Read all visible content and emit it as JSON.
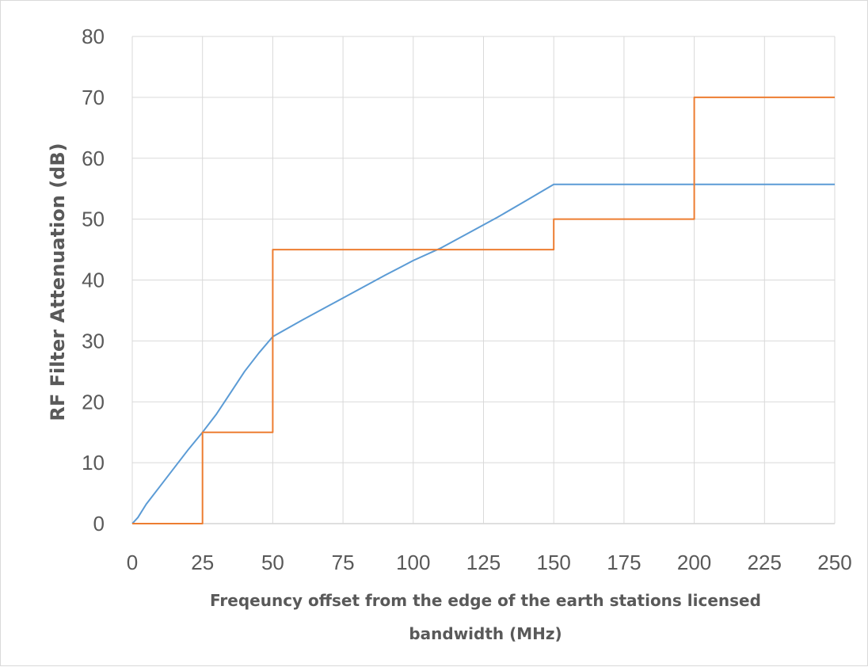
{
  "chart_data": {
    "type": "line",
    "title": "",
    "xlabel_lines": [
      "Freqeuncy offset from the edge of the earth stations licensed",
      "bandwidth (MHz)"
    ],
    "ylabel": "RF Filter Attenuation (dB)",
    "xlim": [
      0,
      250
    ],
    "ylim": [
      0,
      80
    ],
    "xticks": [
      0,
      25,
      50,
      75,
      100,
      125,
      150,
      175,
      200,
      225,
      250
    ],
    "yticks": [
      0,
      10,
      20,
      30,
      40,
      50,
      60,
      70,
      80
    ],
    "grid": true,
    "legend": "none",
    "series": [
      {
        "color": "#5b9bd5",
        "x": [
          0,
          2,
          5,
          10,
          15,
          20,
          25,
          30,
          35,
          40,
          45,
          50,
          60,
          70,
          80,
          90,
          100,
          110,
          120,
          130,
          140,
          150,
          175,
          200,
          225,
          250
        ],
        "y": [
          0,
          1,
          3.2,
          6.2,
          9.2,
          12.2,
          15,
          18,
          21.5,
          25,
          28,
          30.7,
          33.3,
          35.8,
          38.3,
          40.8,
          43.2,
          45.3,
          47.8,
          50.3,
          53,
          55.7,
          55.7,
          55.7,
          55.7,
          55.7
        ]
      },
      {
        "color": "#ed7d31",
        "x": [
          0,
          25,
          25,
          50,
          50,
          150,
          150,
          200,
          200,
          250
        ],
        "y": [
          0,
          0,
          15,
          15,
          45,
          45,
          50,
          50,
          70,
          70
        ]
      }
    ]
  }
}
